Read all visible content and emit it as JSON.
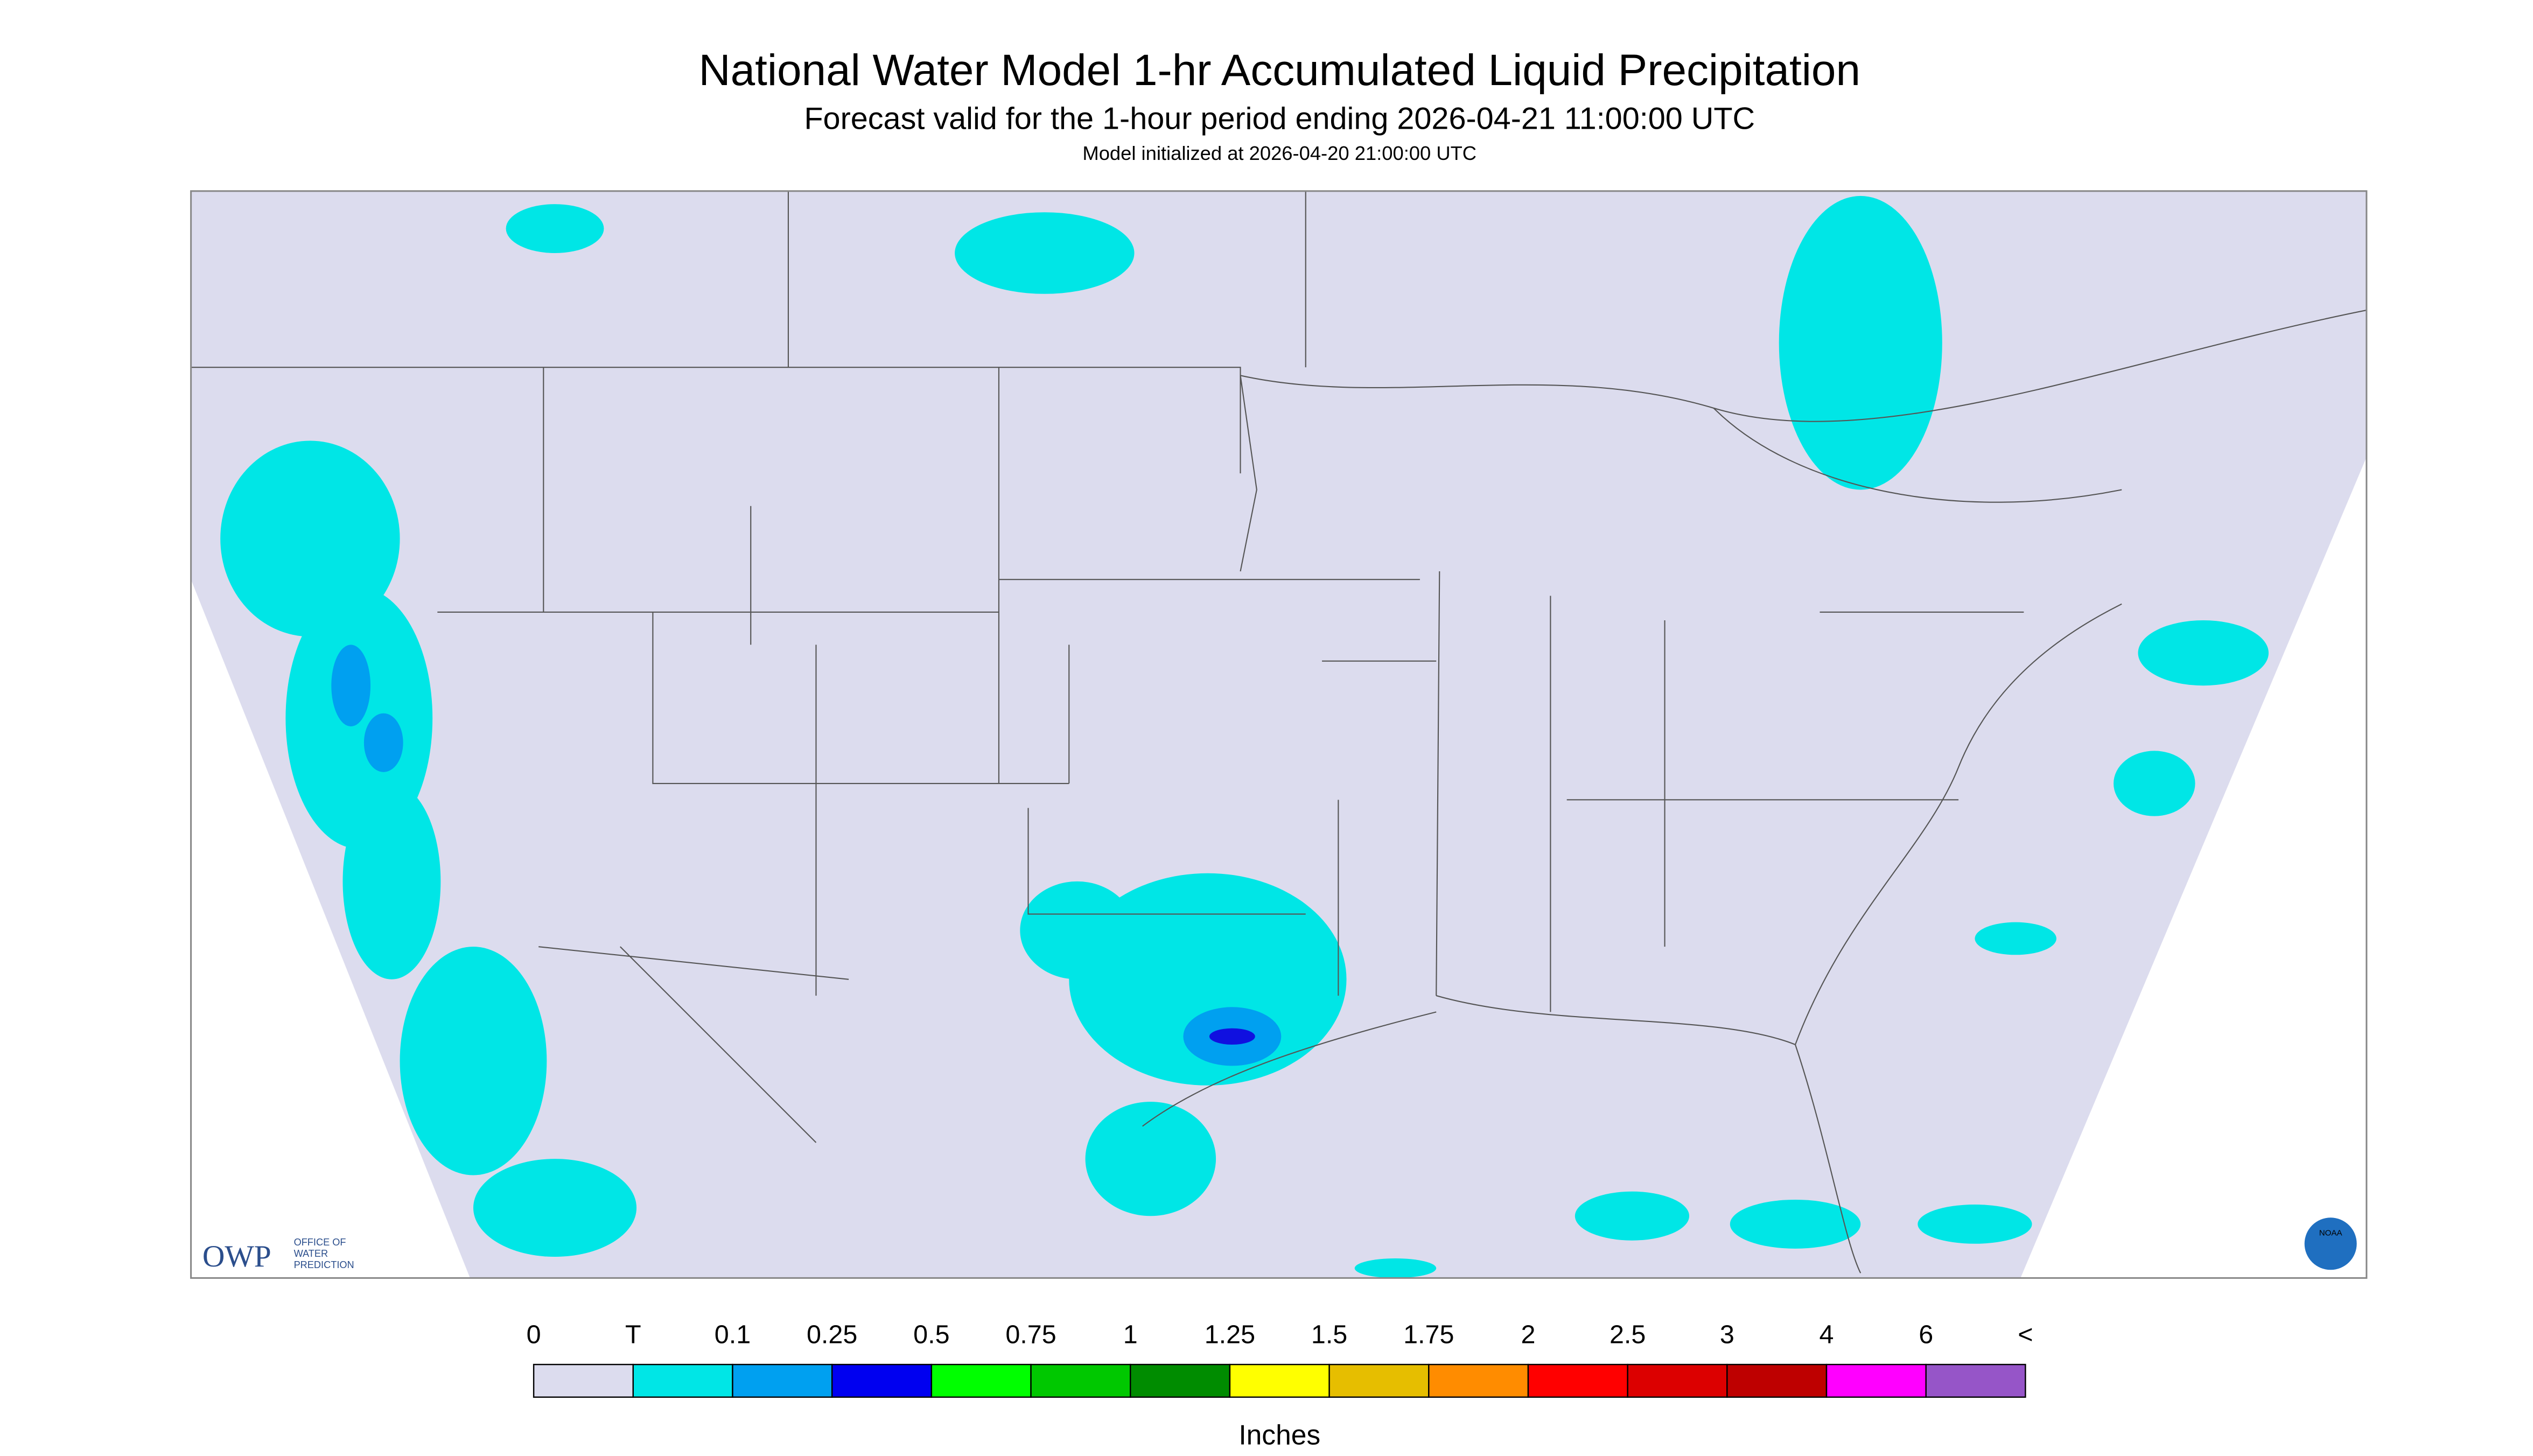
{
  "header": {
    "title": "National Water Model 1-hr Accumulated Liquid Precipitation",
    "subtitle": "Forecast valid for the 1-hour period ending 2026-04-21 11:00:00 UTC",
    "note": "Model initialized at 2026-04-20 21:00:00 UTC"
  },
  "legend": {
    "labels": [
      "0",
      "T",
      "0.1",
      "0.25",
      "0.5",
      "0.75",
      "1",
      "1.25",
      "1.5",
      "1.75",
      "2",
      "2.5",
      "3",
      "4",
      "6",
      "<"
    ],
    "colors": [
      "#dcdcee",
      "#00e6e6",
      "#00a0f0",
      "#0000f0",
      "#00ff00",
      "#00c800",
      "#008c00",
      "#ffff00",
      "#e6be00",
      "#ff8c00",
      "#ff0000",
      "#dc0000",
      "#be0000",
      "#ff00ff",
      "#9655c8"
    ],
    "unit": "Inches"
  },
  "logo": {
    "text": "OWP",
    "subtext": [
      "OFFICE OF",
      "WATER",
      "PREDICTION"
    ],
    "badge": "NOAA"
  }
}
